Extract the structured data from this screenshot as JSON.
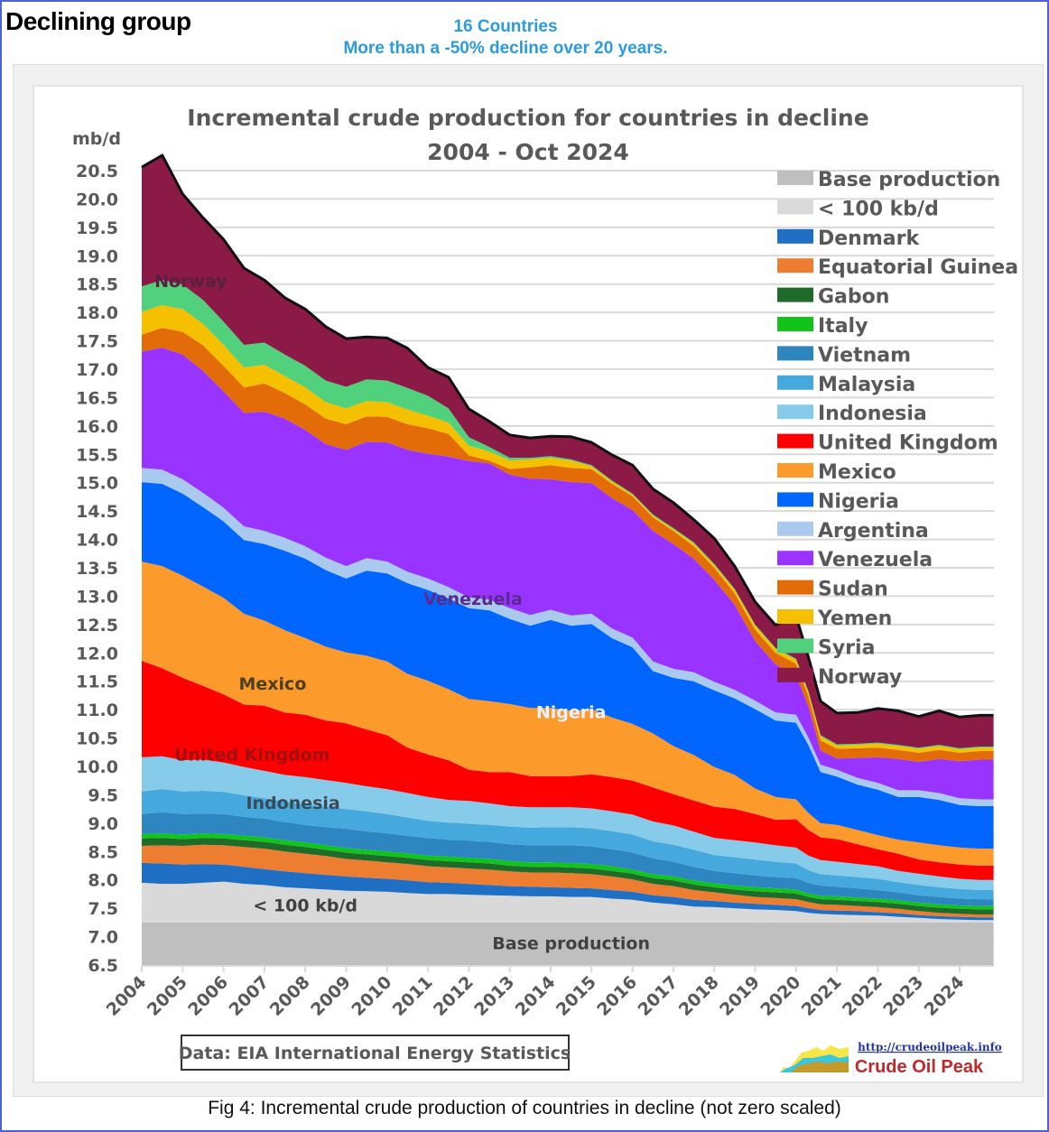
{
  "header": {
    "title": "Declining group",
    "subtitle_line1": "16 Countries",
    "subtitle_line2": "More than a -50% decline over 20 years."
  },
  "caption": "Fig 4: Incremental crude production of countries in decline (not zero scaled)",
  "source_note": "Data: EIA International Energy Statistics",
  "logo": {
    "url_text": "http://crudeoilpeak.info",
    "name": "Crude Oil Peak"
  },
  "chart_data": {
    "type": "area",
    "stacked": true,
    "title": "Incremental crude production for countries in decline",
    "subtitle": "2004 - Oct 2024",
    "ylabel": "mb/d",
    "xlabel": "",
    "ylim": [
      6.5,
      20.5
    ],
    "yticks": [
      6.5,
      7.0,
      7.5,
      8.0,
      8.5,
      9.0,
      9.5,
      10.0,
      10.5,
      11.0,
      11.5,
      12.0,
      12.5,
      13.0,
      13.5,
      14.0,
      14.5,
      15.0,
      15.5,
      16.0,
      16.5,
      17.0,
      17.5,
      18.0,
      18.5,
      19.0,
      19.5,
      20.0,
      20.5
    ],
    "ytick_labels": [
      "6.5",
      "7.0",
      "7.5",
      "8.0",
      "8.5",
      "9.0",
      "9.5",
      "10.0",
      "10.5",
      "11.0",
      "11.5",
      "12.0",
      "12.5",
      "13.0",
      "13.5",
      "14.0",
      "14.5",
      "15.0",
      "15.5",
      "16.0",
      "16.5",
      "17.0",
      "17.5",
      "18.0",
      "18.5",
      "19.0",
      "19.5",
      "20.0",
      "20.5"
    ],
    "xlim": [
      2004,
      2024.83
    ],
    "xtick_labels": [
      "2004",
      "2005",
      "2006",
      "2007",
      "2008",
      "2009",
      "2010",
      "2011",
      "2012",
      "2013",
      "2014",
      "2015",
      "2016",
      "2017",
      "2018",
      "2019",
      "2020",
      "2021",
      "2022",
      "2023",
      "2024"
    ],
    "grid": "horizontal",
    "legend_position": "top-right",
    "x": [
      2004.0,
      2004.5,
      2005.0,
      2005.5,
      2006.0,
      2006.5,
      2007.0,
      2007.5,
      2008.0,
      2008.5,
      2009.0,
      2009.5,
      2010.0,
      2010.5,
      2011.0,
      2011.5,
      2012.0,
      2012.5,
      2013.0,
      2013.5,
      2014.0,
      2014.5,
      2015.0,
      2015.5,
      2016.0,
      2016.5,
      2017.0,
      2017.5,
      2018.0,
      2018.5,
      2019.0,
      2019.5,
      2020.0,
      2020.3,
      2020.6,
      2021.0,
      2021.5,
      2022.0,
      2022.5,
      2023.0,
      2023.5,
      2024.0,
      2024.5,
      2024.83
    ],
    "series": [
      {
        "name": "Base production",
        "color": "#bfbfbf",
        "values": [
          7.25,
          7.25,
          7.25,
          7.25,
          7.25,
          7.25,
          7.25,
          7.25,
          7.25,
          7.25,
          7.25,
          7.25,
          7.25,
          7.25,
          7.25,
          7.25,
          7.25,
          7.25,
          7.25,
          7.25,
          7.25,
          7.25,
          7.25,
          7.25,
          7.25,
          7.25,
          7.25,
          7.25,
          7.25,
          7.25,
          7.25,
          7.25,
          7.25,
          7.25,
          7.25,
          7.25,
          7.25,
          7.25,
          7.25,
          7.25,
          7.25,
          7.25,
          7.25,
          7.25
        ]
      },
      {
        "name": "< 100 kb/d",
        "color": "#d9d9d9",
        "values": [
          0.7,
          0.68,
          0.68,
          0.7,
          0.72,
          0.68,
          0.66,
          0.62,
          0.6,
          0.58,
          0.56,
          0.55,
          0.54,
          0.52,
          0.5,
          0.5,
          0.49,
          0.48,
          0.47,
          0.46,
          0.46,
          0.45,
          0.45,
          0.42,
          0.4,
          0.35,
          0.32,
          0.28,
          0.27,
          0.25,
          0.23,
          0.22,
          0.2,
          0.17,
          0.15,
          0.14,
          0.13,
          0.12,
          0.1,
          0.08,
          0.06,
          0.05,
          0.04,
          0.04
        ]
      },
      {
        "name": "Denmark",
        "color": "#1f6fc4",
        "values": [
          0.35,
          0.36,
          0.34,
          0.33,
          0.3,
          0.3,
          0.28,
          0.28,
          0.27,
          0.26,
          0.25,
          0.24,
          0.23,
          0.22,
          0.21,
          0.2,
          0.19,
          0.18,
          0.17,
          0.17,
          0.16,
          0.16,
          0.15,
          0.15,
          0.14,
          0.13,
          0.13,
          0.12,
          0.11,
          0.1,
          0.1,
          0.09,
          0.09,
          0.08,
          0.07,
          0.07,
          0.07,
          0.06,
          0.06,
          0.05,
          0.05,
          0.05,
          0.05,
          0.05
        ]
      },
      {
        "name": "Equatorial Guinea",
        "color": "#ed7d31",
        "values": [
          0.3,
          0.32,
          0.33,
          0.34,
          0.34,
          0.35,
          0.36,
          0.35,
          0.34,
          0.33,
          0.31,
          0.3,
          0.29,
          0.29,
          0.28,
          0.27,
          0.27,
          0.27,
          0.26,
          0.25,
          0.26,
          0.26,
          0.25,
          0.24,
          0.22,
          0.2,
          0.19,
          0.17,
          0.15,
          0.14,
          0.12,
          0.12,
          0.12,
          0.11,
          0.1,
          0.1,
          0.09,
          0.09,
          0.08,
          0.07,
          0.06,
          0.05,
          0.05,
          0.05
        ]
      },
      {
        "name": "Gabon",
        "color": "#1e6b2a",
        "values": [
          0.13,
          0.13,
          0.12,
          0.12,
          0.12,
          0.12,
          0.12,
          0.12,
          0.12,
          0.11,
          0.11,
          0.11,
          0.11,
          0.11,
          0.11,
          0.11,
          0.11,
          0.11,
          0.1,
          0.1,
          0.1,
          0.1,
          0.1,
          0.1,
          0.1,
          0.1,
          0.1,
          0.1,
          0.09,
          0.09,
          0.1,
          0.1,
          0.1,
          0.09,
          0.09,
          0.09,
          0.09,
          0.09,
          0.09,
          0.09,
          0.09,
          0.09,
          0.09,
          0.09
        ]
      },
      {
        "name": "Italy",
        "color": "#11c41a",
        "values": [
          0.08,
          0.08,
          0.08,
          0.08,
          0.08,
          0.08,
          0.08,
          0.08,
          0.08,
          0.08,
          0.08,
          0.08,
          0.08,
          0.08,
          0.08,
          0.08,
          0.08,
          0.08,
          0.08,
          0.08,
          0.08,
          0.08,
          0.08,
          0.08,
          0.07,
          0.07,
          0.07,
          0.07,
          0.07,
          0.07,
          0.07,
          0.07,
          0.07,
          0.06,
          0.06,
          0.06,
          0.06,
          0.06,
          0.06,
          0.06,
          0.06,
          0.06,
          0.06,
          0.06
        ]
      },
      {
        "name": "Vietnam",
        "color": "#2e86c1",
        "values": [
          0.35,
          0.37,
          0.36,
          0.35,
          0.35,
          0.33,
          0.33,
          0.32,
          0.31,
          0.32,
          0.34,
          0.33,
          0.32,
          0.31,
          0.31,
          0.3,
          0.3,
          0.3,
          0.3,
          0.3,
          0.3,
          0.31,
          0.31,
          0.3,
          0.3,
          0.28,
          0.26,
          0.24,
          0.22,
          0.22,
          0.21,
          0.2,
          0.2,
          0.19,
          0.18,
          0.17,
          0.16,
          0.15,
          0.14,
          0.13,
          0.13,
          0.12,
          0.12,
          0.12
        ]
      },
      {
        "name": "Malaysia",
        "color": "#46a9dd",
        "values": [
          0.4,
          0.41,
          0.4,
          0.4,
          0.39,
          0.38,
          0.36,
          0.36,
          0.36,
          0.36,
          0.35,
          0.35,
          0.34,
          0.32,
          0.3,
          0.3,
          0.3,
          0.3,
          0.31,
          0.31,
          0.32,
          0.32,
          0.32,
          0.32,
          0.32,
          0.3,
          0.3,
          0.3,
          0.28,
          0.28,
          0.28,
          0.27,
          0.26,
          0.22,
          0.2,
          0.2,
          0.2,
          0.2,
          0.18,
          0.18,
          0.17,
          0.17,
          0.16,
          0.16
        ]
      },
      {
        "name": "Indonesia",
        "color": "#87cbeb",
        "values": [
          0.6,
          0.58,
          0.55,
          0.55,
          0.52,
          0.5,
          0.48,
          0.47,
          0.48,
          0.47,
          0.46,
          0.44,
          0.44,
          0.43,
          0.42,
          0.4,
          0.4,
          0.38,
          0.36,
          0.36,
          0.35,
          0.35,
          0.35,
          0.35,
          0.35,
          0.35,
          0.34,
          0.32,
          0.3,
          0.3,
          0.3,
          0.29,
          0.28,
          0.26,
          0.25,
          0.24,
          0.23,
          0.22,
          0.2,
          0.2,
          0.19,
          0.18,
          0.18,
          0.18
        ]
      },
      {
        "name": "United Kingdom",
        "color": "#ff0000",
        "values": [
          1.7,
          1.55,
          1.45,
          1.3,
          1.2,
          1.1,
          1.15,
          1.1,
          1.1,
          1.05,
          1.05,
          1.0,
          0.95,
          0.8,
          0.75,
          0.7,
          0.55,
          0.55,
          0.6,
          0.55,
          0.55,
          0.55,
          0.6,
          0.6,
          0.6,
          0.6,
          0.55,
          0.55,
          0.55,
          0.55,
          0.5,
          0.45,
          0.5,
          0.45,
          0.4,
          0.4,
          0.35,
          0.3,
          0.3,
          0.25,
          0.25,
          0.25,
          0.25,
          0.25
        ]
      },
      {
        "name": "Mexico",
        "color": "#fd9a2c",
        "values": [
          1.75,
          1.8,
          1.8,
          1.75,
          1.7,
          1.6,
          1.5,
          1.45,
          1.35,
          1.3,
          1.25,
          1.3,
          1.3,
          1.3,
          1.3,
          1.25,
          1.25,
          1.25,
          1.2,
          1.2,
          1.2,
          1.15,
          1.15,
          1.05,
          1.0,
          0.95,
          0.85,
          0.8,
          0.7,
          0.6,
          0.45,
          0.4,
          0.35,
          0.3,
          0.25,
          0.25,
          0.25,
          0.25,
          0.25,
          0.3,
          0.3,
          0.3,
          0.3,
          0.3
        ]
      },
      {
        "name": "Nigeria",
        "color": "#0066ff",
        "values": [
          1.4,
          1.45,
          1.45,
          1.4,
          1.35,
          1.3,
          1.35,
          1.4,
          1.4,
          1.35,
          1.3,
          1.5,
          1.55,
          1.6,
          1.6,
          1.6,
          1.6,
          1.6,
          1.5,
          1.45,
          1.55,
          1.5,
          1.5,
          1.4,
          1.35,
          1.1,
          1.2,
          1.3,
          1.35,
          1.35,
          1.4,
          1.35,
          1.35,
          1.2,
          0.9,
          0.85,
          0.8,
          0.8,
          0.75,
          0.8,
          0.8,
          0.75,
          0.75,
          0.75
        ]
      },
      {
        "name": "Argentina",
        "color": "#a9c9ee",
        "values": [
          0.25,
          0.25,
          0.25,
          0.25,
          0.24,
          0.24,
          0.23,
          0.23,
          0.22,
          0.22,
          0.22,
          0.22,
          0.21,
          0.2,
          0.2,
          0.2,
          0.19,
          0.19,
          0.19,
          0.19,
          0.18,
          0.18,
          0.18,
          0.17,
          0.17,
          0.17,
          0.16,
          0.16,
          0.15,
          0.15,
          0.15,
          0.14,
          0.14,
          0.13,
          0.13,
          0.12,
          0.12,
          0.12,
          0.12,
          0.12,
          0.12,
          0.12,
          0.12,
          0.12
        ]
      },
      {
        "name": "Venezuela",
        "color": "#9933ff",
        "values": [
          2.05,
          2.15,
          2.2,
          2.15,
          2.05,
          2.0,
          2.1,
          2.1,
          2.05,
          2.0,
          2.05,
          2.05,
          2.1,
          2.15,
          2.2,
          2.3,
          2.4,
          2.4,
          2.35,
          2.4,
          2.3,
          2.35,
          2.3,
          2.3,
          2.25,
          2.3,
          2.2,
          2.0,
          1.8,
          1.5,
          1.05,
          0.85,
          0.7,
          0.55,
          0.25,
          0.2,
          0.35,
          0.45,
          0.55,
          0.5,
          0.6,
          0.65,
          0.7,
          0.7
        ]
      },
      {
        "name": "Sudan",
        "color": "#e36c09",
        "values": [
          0.3,
          0.35,
          0.4,
          0.45,
          0.45,
          0.45,
          0.5,
          0.45,
          0.45,
          0.45,
          0.45,
          0.45,
          0.45,
          0.45,
          0.45,
          0.4,
          0.1,
          0.05,
          0.1,
          0.2,
          0.25,
          0.25,
          0.25,
          0.25,
          0.24,
          0.24,
          0.23,
          0.22,
          0.21,
          0.2,
          0.2,
          0.2,
          0.2,
          0.18,
          0.18,
          0.17,
          0.17,
          0.17,
          0.16,
          0.16,
          0.16,
          0.15,
          0.15,
          0.15
        ]
      },
      {
        "name": "Yemen",
        "color": "#f5c000",
        "values": [
          0.4,
          0.4,
          0.4,
          0.38,
          0.37,
          0.35,
          0.33,
          0.3,
          0.3,
          0.29,
          0.28,
          0.27,
          0.26,
          0.26,
          0.22,
          0.2,
          0.17,
          0.16,
          0.15,
          0.14,
          0.13,
          0.13,
          0.05,
          0.04,
          0.03,
          0.03,
          0.03,
          0.05,
          0.05,
          0.06,
          0.07,
          0.07,
          0.07,
          0.07,
          0.07,
          0.06,
          0.06,
          0.07,
          0.07,
          0.07,
          0.07,
          0.06,
          0.06,
          0.06
        ]
      },
      {
        "name": "Syria",
        "color": "#52d17c",
        "values": [
          0.45,
          0.44,
          0.43,
          0.42,
          0.41,
          0.4,
          0.39,
          0.38,
          0.38,
          0.38,
          0.38,
          0.38,
          0.38,
          0.38,
          0.35,
          0.25,
          0.15,
          0.08,
          0.05,
          0.03,
          0.03,
          0.02,
          0.02,
          0.02,
          0.02,
          0.02,
          0.02,
          0.02,
          0.02,
          0.02,
          0.02,
          0.02,
          0.02,
          0.02,
          0.02,
          0.02,
          0.02,
          0.02,
          0.02,
          0.02,
          0.02,
          0.02,
          0.02,
          0.02
        ]
      },
      {
        "name": "Norway",
        "color": "#8b1a47",
        "values": [
          2.1,
          2.2,
          1.6,
          1.45,
          1.45,
          1.35,
          1.1,
          1.0,
          1.0,
          0.95,
          0.85,
          0.75,
          0.75,
          0.7,
          0.5,
          0.55,
          0.5,
          0.45,
          0.4,
          0.35,
          0.35,
          0.4,
          0.4,
          0.45,
          0.5,
          0.45,
          0.45,
          0.4,
          0.45,
          0.4,
          0.4,
          0.4,
          0.75,
          0.6,
          0.6,
          0.55,
          0.55,
          0.6,
          0.6,
          0.55,
          0.6,
          0.55,
          0.55,
          0.55
        ]
      }
    ],
    "area_labels": [
      {
        "text": "Norway",
        "x": 2005.2,
        "y": 18.45,
        "color": "#5a2040"
      },
      {
        "text": "Venezuela",
        "x": 2012.1,
        "y": 12.85,
        "color": "#5b2a8c"
      },
      {
        "text": "Mexico",
        "x": 2007.2,
        "y": 11.35,
        "color": "#4d4020"
      },
      {
        "text": "Nigeria",
        "x": 2014.5,
        "y": 10.85,
        "color": "#e8f0ff"
      },
      {
        "text": "United Kingdom",
        "x": 2006.7,
        "y": 10.1,
        "color": "#a01010"
      },
      {
        "text": "Indonesia",
        "x": 2007.7,
        "y": 9.25,
        "color": "#3a4a55"
      },
      {
        "text": "< 100 kb/d",
        "x": 2008.0,
        "y": 7.45,
        "color": "#404040"
      },
      {
        "text": "Base production",
        "x": 2014.5,
        "y": 6.78,
        "color": "#404040"
      }
    ]
  }
}
